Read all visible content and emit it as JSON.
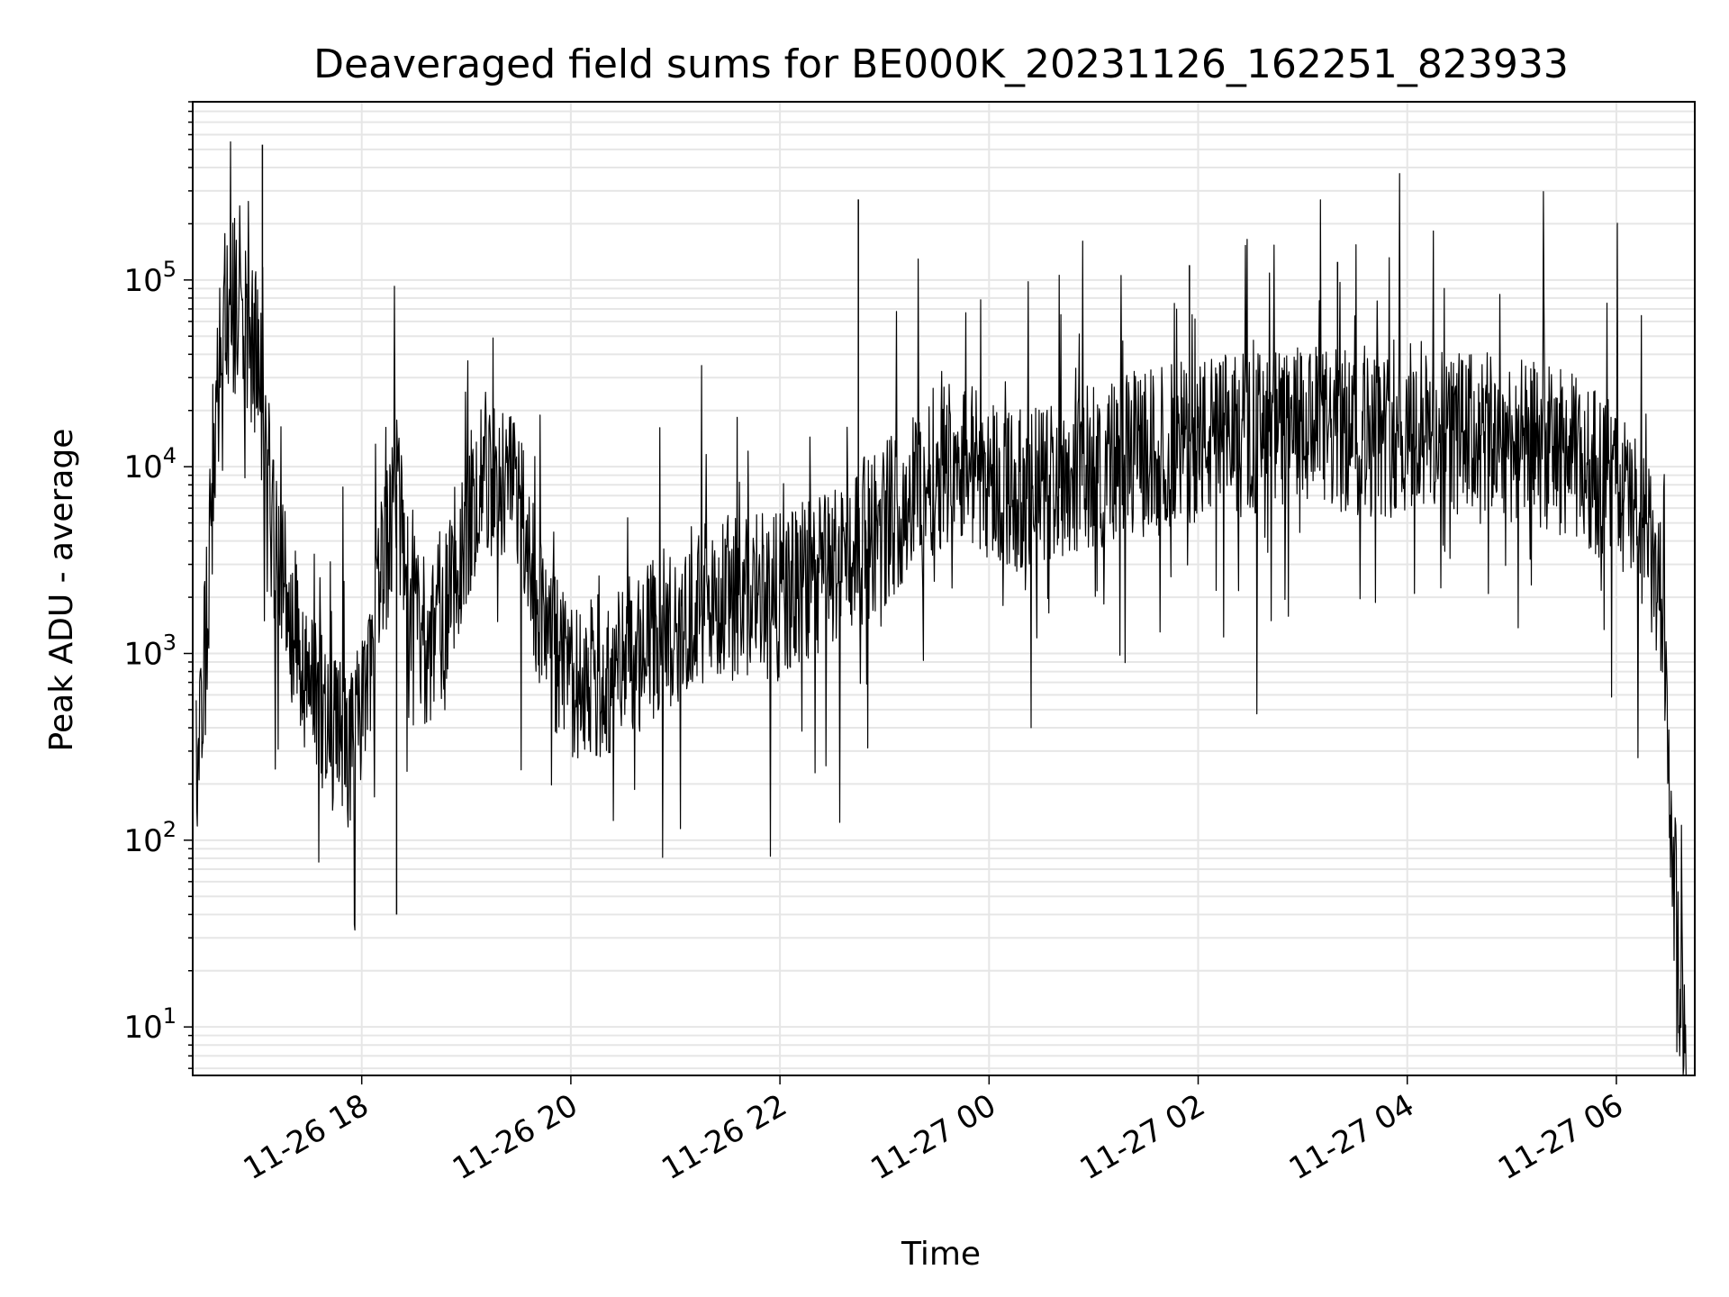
{
  "chart_data": {
    "type": "line",
    "title": "Deaveraged field sums for BE000K_20231126_162251_823933",
    "xlabel": "Time",
    "ylabel": "Peak ADU - average",
    "yscale": "log",
    "grid": true,
    "legend": "none",
    "line_color": "#000000",
    "grid_color": "#e6e6e6",
    "xlim": [
      "2023-11-26 16:23",
      "2023-11-27 06:45"
    ],
    "ylim": [
      5.5,
      900000
    ],
    "x_ticks": [
      {
        "value": "2023-11-26 18:00",
        "label": "11-26 18"
      },
      {
        "value": "2023-11-26 20:00",
        "label": "11-26 20"
      },
      {
        "value": "2023-11-26 22:00",
        "label": "11-26 22"
      },
      {
        "value": "2023-11-27 00:00",
        "label": "11-27 00"
      },
      {
        "value": "2023-11-27 02:00",
        "label": "11-27 02"
      },
      {
        "value": "2023-11-27 04:00",
        "label": "11-27 04"
      },
      {
        "value": "2023-11-27 06:00",
        "label": "11-27 06"
      }
    ],
    "y_ticks": [
      {
        "value": 10,
        "base": "10",
        "exp": "1"
      },
      {
        "value": 100,
        "base": "10",
        "exp": "2"
      },
      {
        "value": 1000,
        "base": "10",
        "exp": "3"
      },
      {
        "value": 10000,
        "base": "10",
        "exp": "4"
      },
      {
        "value": 100000,
        "base": "10",
        "exp": "5"
      }
    ],
    "series": [
      {
        "x": [
          "2023-11-26 16:25",
          "2023-11-26 16:30",
          "2023-11-26 16:35",
          "2023-11-26 16:40",
          "2023-11-26 16:45",
          "2023-11-26 16:50",
          "2023-11-26 17:00",
          "2023-11-26 17:05",
          "2023-11-26 17:10",
          "2023-11-26 17:20",
          "2023-11-26 17:30",
          "2023-11-26 17:40",
          "2023-11-26 17:50",
          "2023-11-26 18:00",
          "2023-11-26 18:10",
          "2023-11-26 18:20",
          "2023-11-26 18:30",
          "2023-11-26 18:40",
          "2023-11-26 18:50",
          "2023-11-26 19:00",
          "2023-11-26 19:10",
          "2023-11-26 19:20",
          "2023-11-26 19:30",
          "2023-11-26 19:40",
          "2023-11-26 19:50",
          "2023-11-26 20:00",
          "2023-11-26 20:10",
          "2023-11-26 20:20",
          "2023-11-26 20:30",
          "2023-11-26 20:40",
          "2023-11-26 20:50",
          "2023-11-26 21:00",
          "2023-11-26 21:20",
          "2023-11-26 21:40",
          "2023-11-26 22:00",
          "2023-11-26 22:20",
          "2023-11-26 22:40",
          "2023-11-26 23:00",
          "2023-11-26 23:20",
          "2023-11-26 23:40",
          "2023-11-27 00:00",
          "2023-11-27 00:20",
          "2023-11-27 00:40",
          "2023-11-27 01:00",
          "2023-11-27 01:30",
          "2023-11-27 02:00",
          "2023-11-27 02:30",
          "2023-11-27 03:00",
          "2023-11-27 03:30",
          "2023-11-27 04:00",
          "2023-11-27 04:30",
          "2023-11-27 05:00",
          "2023-11-27 05:30",
          "2023-11-27 06:00",
          "2023-11-27 06:15",
          "2023-11-27 06:25",
          "2023-11-27 06:30",
          "2023-11-27 06:35",
          "2023-11-27 06:40"
        ],
        "y": [
          200,
          1000,
          10000,
          70000,
          75000,
          60000,
          40000,
          12000,
          3500,
          1500,
          700,
          400,
          300,
          400,
          2000,
          8000,
          1500,
          1000,
          2000,
          5000,
          10000,
          8000,
          6000,
          2000,
          1000,
          600,
          800,
          700,
          900,
          1000,
          1200,
          1500,
          2000,
          2000,
          2000,
          2500,
          3500,
          5000,
          8000,
          12000,
          9000,
          7000,
          9000,
          10000,
          12000,
          14000,
          15000,
          16000,
          15000,
          15000,
          15000,
          14000,
          12000,
          8000,
          5000,
          2000,
          200,
          30,
          6
        ],
        "spikes": [
          {
            "x": "2023-11-26 17:03",
            "y": 530000
          },
          {
            "x": "2023-11-26 18:20",
            "y": 40
          },
          {
            "x": "2023-11-26 22:45",
            "y": 270000
          },
          {
            "x": "2023-11-27 01:55",
            "y": 120000
          },
          {
            "x": "2023-11-27 03:20",
            "y": 125000
          }
        ]
      }
    ]
  }
}
